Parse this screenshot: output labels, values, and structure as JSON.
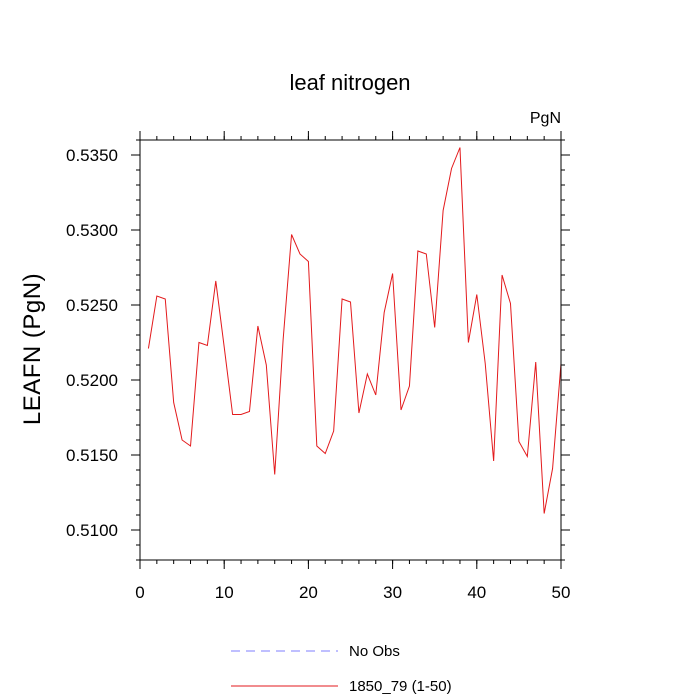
{
  "chart_data": {
    "type": "line",
    "title": "leaf nitrogen",
    "units": "PgN",
    "xlabel": "",
    "ylabel": "LEAFN  (PgN)",
    "xlim": [
      0,
      50
    ],
    "ylim": [
      0.508,
      0.536
    ],
    "x_ticks": [
      0,
      10,
      20,
      30,
      40,
      50
    ],
    "x_tick_labels": [
      "0",
      "10",
      "20",
      "30",
      "40",
      "50"
    ],
    "x_minor_step": 2,
    "y_ticks": [
      0.51,
      0.515,
      0.52,
      0.525,
      0.53,
      0.535
    ],
    "y_tick_labels": [
      "0.5100",
      "0.5150",
      "0.5200",
      "0.5250",
      "0.5300",
      "0.5350"
    ],
    "y_minor_step": 0.001,
    "legend": [
      {
        "label": "No Obs",
        "color": "#7f7fff",
        "style": "dashed"
      },
      {
        "label": "1850_79 (1-50)",
        "color": "#e31a1c",
        "style": "solid"
      }
    ],
    "series": [
      {
        "name": "1850_79 (1-50)",
        "color": "#e31a1c",
        "x": [
          1,
          2,
          3,
          4,
          5,
          6,
          7,
          8,
          9,
          10,
          11,
          12,
          13,
          14,
          15,
          16,
          17,
          18,
          19,
          20,
          21,
          22,
          23,
          24,
          25,
          26,
          27,
          28,
          29,
          30,
          31,
          32,
          33,
          34,
          35,
          36,
          37,
          38,
          39,
          40,
          41,
          42,
          43,
          44,
          45,
          46,
          47,
          48,
          49,
          50
        ],
        "values": [
          0.5221,
          0.5256,
          0.5254,
          0.5185,
          0.516,
          0.5156,
          0.5225,
          0.5223,
          0.5266,
          0.5222,
          0.5177,
          0.5177,
          0.5179,
          0.5236,
          0.521,
          0.5137,
          0.5227,
          0.5297,
          0.5284,
          0.5279,
          0.5156,
          0.5151,
          0.5166,
          0.5254,
          0.5252,
          0.5178,
          0.5204,
          0.519,
          0.5245,
          0.5271,
          0.518,
          0.5196,
          0.5286,
          0.5284,
          0.5235,
          0.5313,
          0.5341,
          0.5355,
          0.5225,
          0.5257,
          0.5211,
          0.5146,
          0.527,
          0.5251,
          0.5159,
          0.5149,
          0.5212,
          0.5111,
          0.5141,
          0.5211
        ]
      }
    ]
  }
}
